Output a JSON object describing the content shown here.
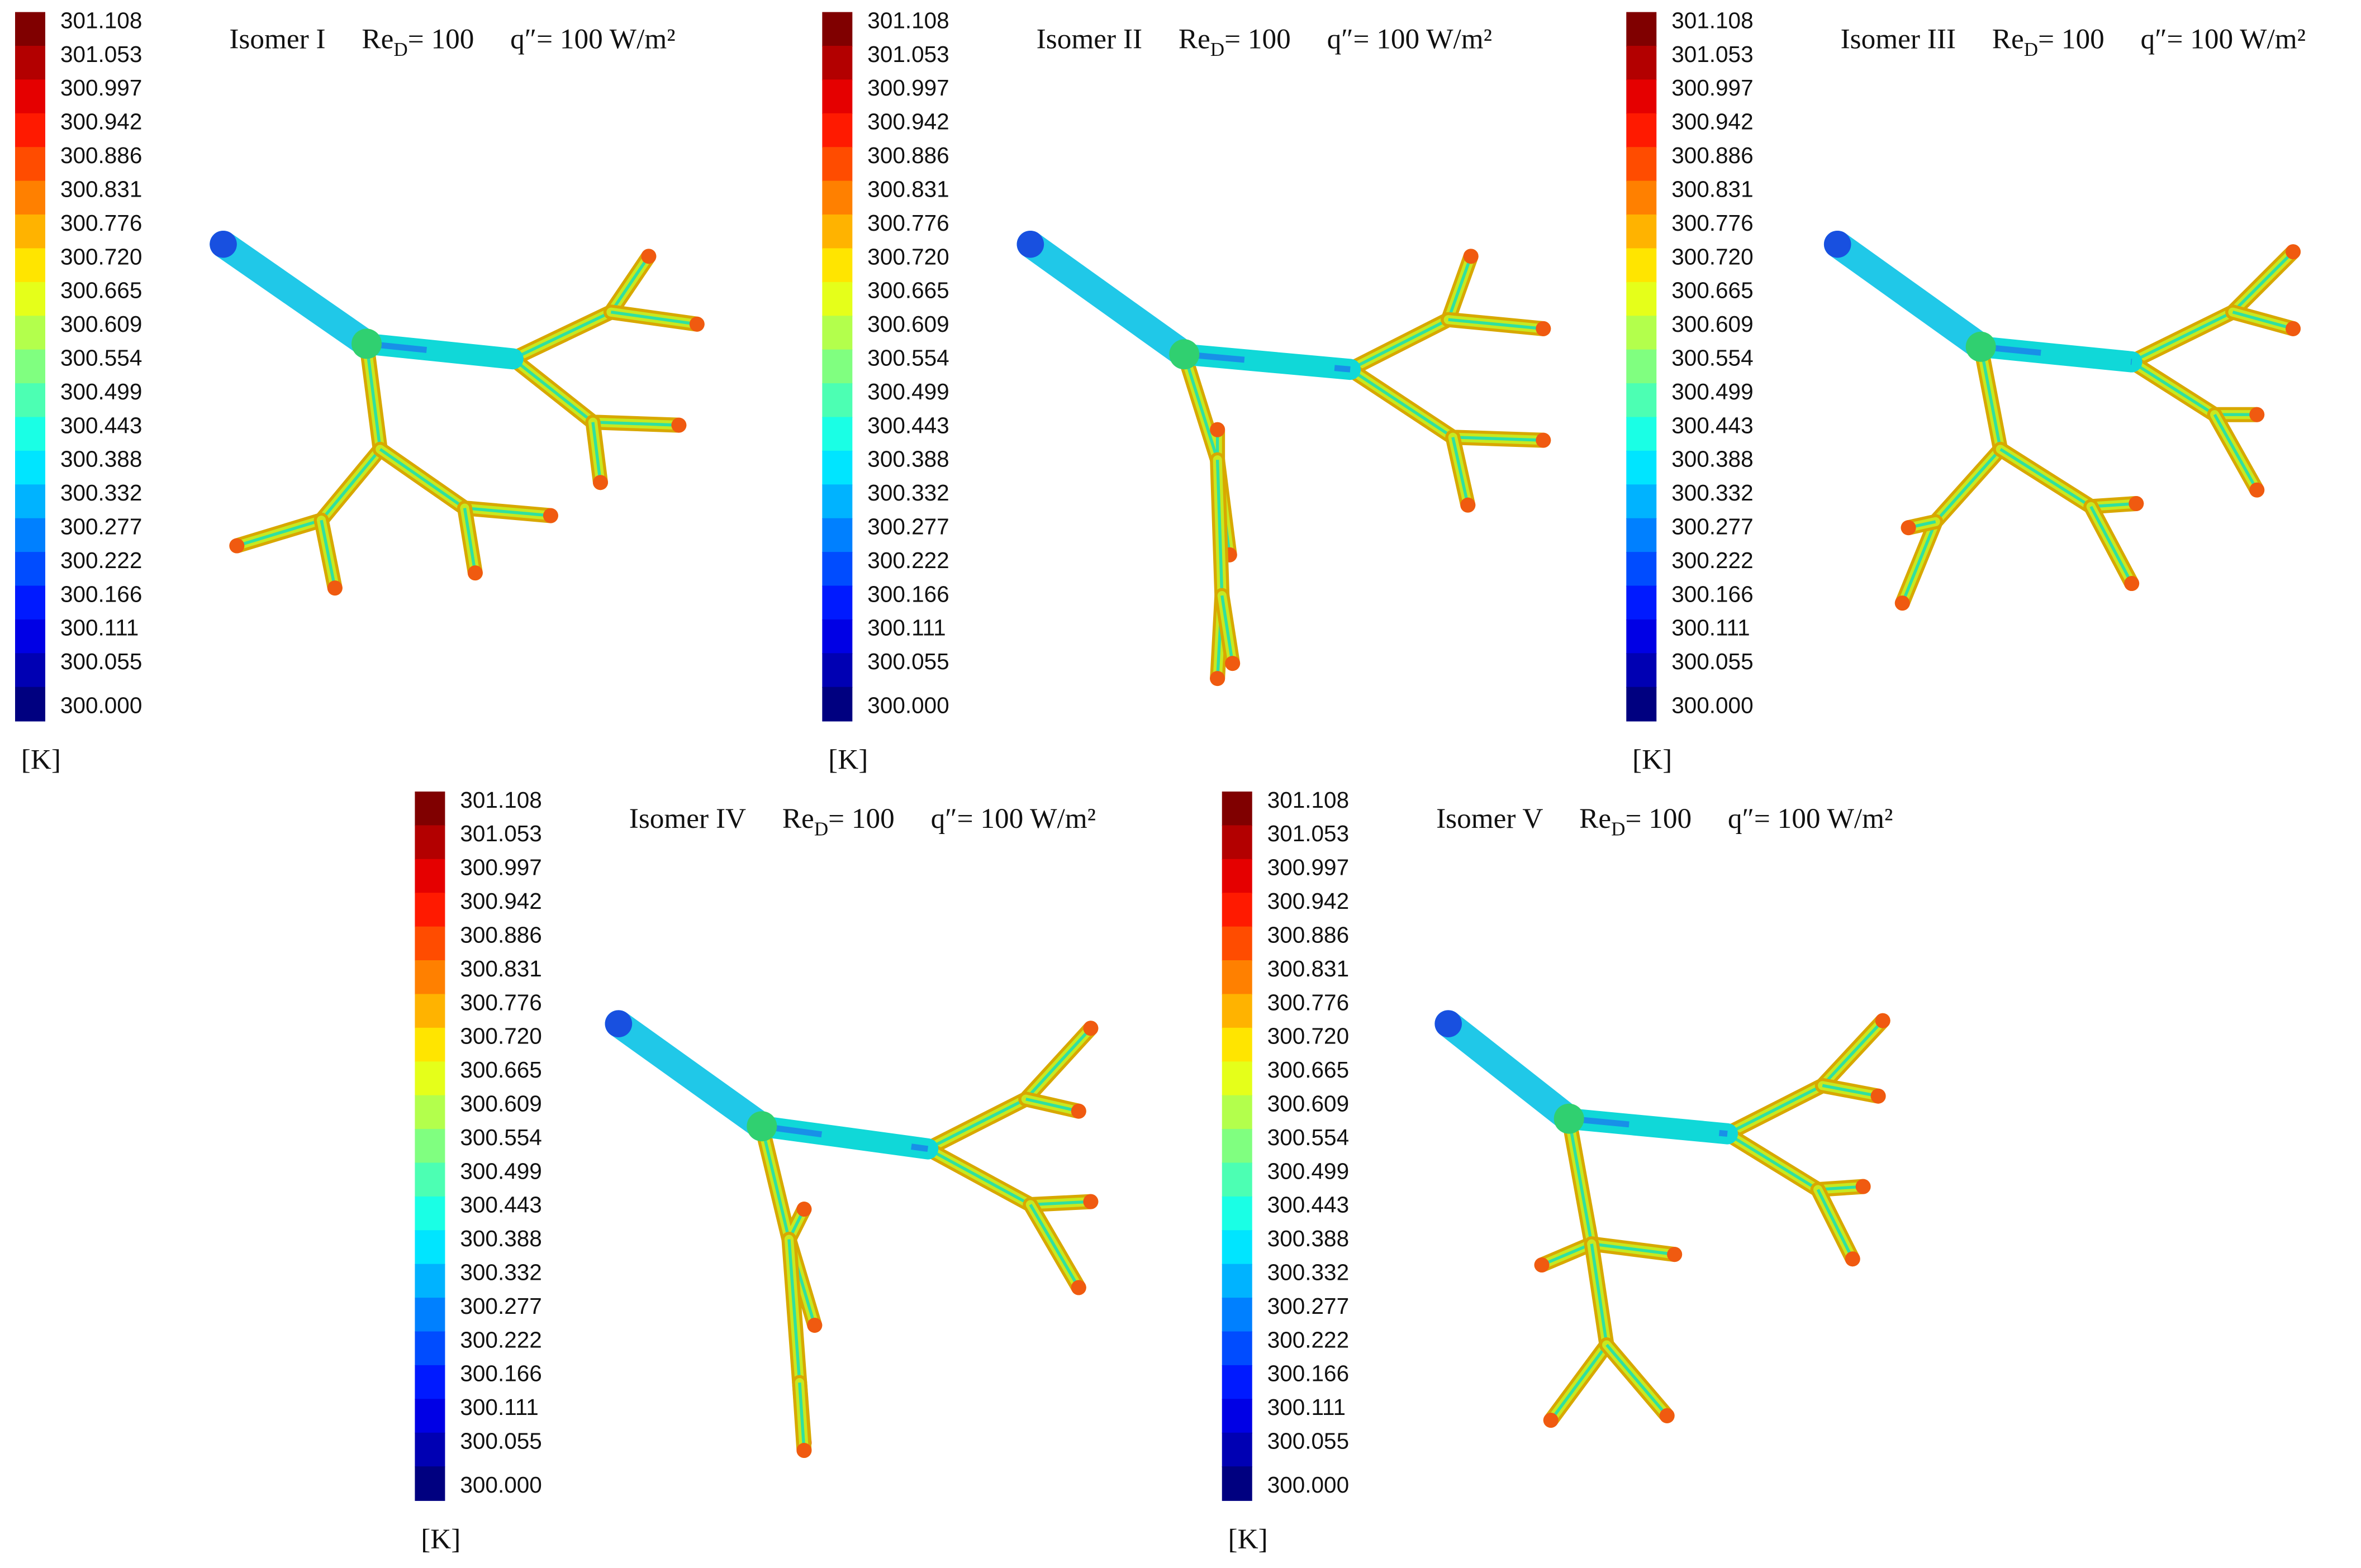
{
  "panels": [
    {
      "title": "Isomer I",
      "reynolds": {
        "symbol": "Re",
        "subscript": "D",
        "value": "= 100"
      },
      "heat_flux": "q″= 100 W/m²"
    },
    {
      "title": "Isomer II",
      "reynolds": {
        "symbol": "Re",
        "subscript": "D",
        "value": "= 100"
      },
      "heat_flux": "q″= 100 W/m²"
    },
    {
      "title": "Isomer III",
      "reynolds": {
        "symbol": "Re",
        "subscript": "D",
        "value": "= 100"
      },
      "heat_flux": "q″= 100 W/m²"
    },
    {
      "title": "Isomer IV",
      "reynolds": {
        "symbol": "Re",
        "subscript": "D",
        "value": "= 100"
      },
      "heat_flux": "q″= 100 W/m²"
    },
    {
      "title": "Isomer V",
      "reynolds": {
        "symbol": "Re",
        "subscript": "D",
        "value": "= 100"
      },
      "heat_flux": "q″= 100 W/m²"
    }
  ],
  "colorbar": {
    "labels": [
      "301.108",
      "301.053",
      "300.997",
      "300.942",
      "300.886",
      "300.831",
      "300.776",
      "300.720",
      "300.665",
      "300.609",
      "300.554",
      "300.499",
      "300.443",
      "300.388",
      "300.332",
      "300.277",
      "300.222",
      "300.166",
      "300.111",
      "300.055",
      "300.000"
    ],
    "unit": "[K]"
  }
}
